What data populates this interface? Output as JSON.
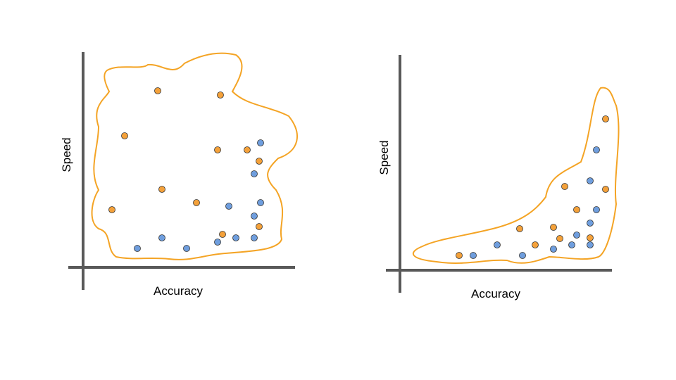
{
  "colors": {
    "orange": "#f4a13a",
    "blue": "#6f9ede",
    "boundary": "#f4a425",
    "axis": "#595959",
    "point_stroke": "#333333"
  },
  "left_plot": {
    "xlabel": "Accuracy",
    "ylabel": "Speed"
  },
  "right_plot": {
    "xlabel": "Accuracy",
    "ylabel": "Speed"
  }
}
